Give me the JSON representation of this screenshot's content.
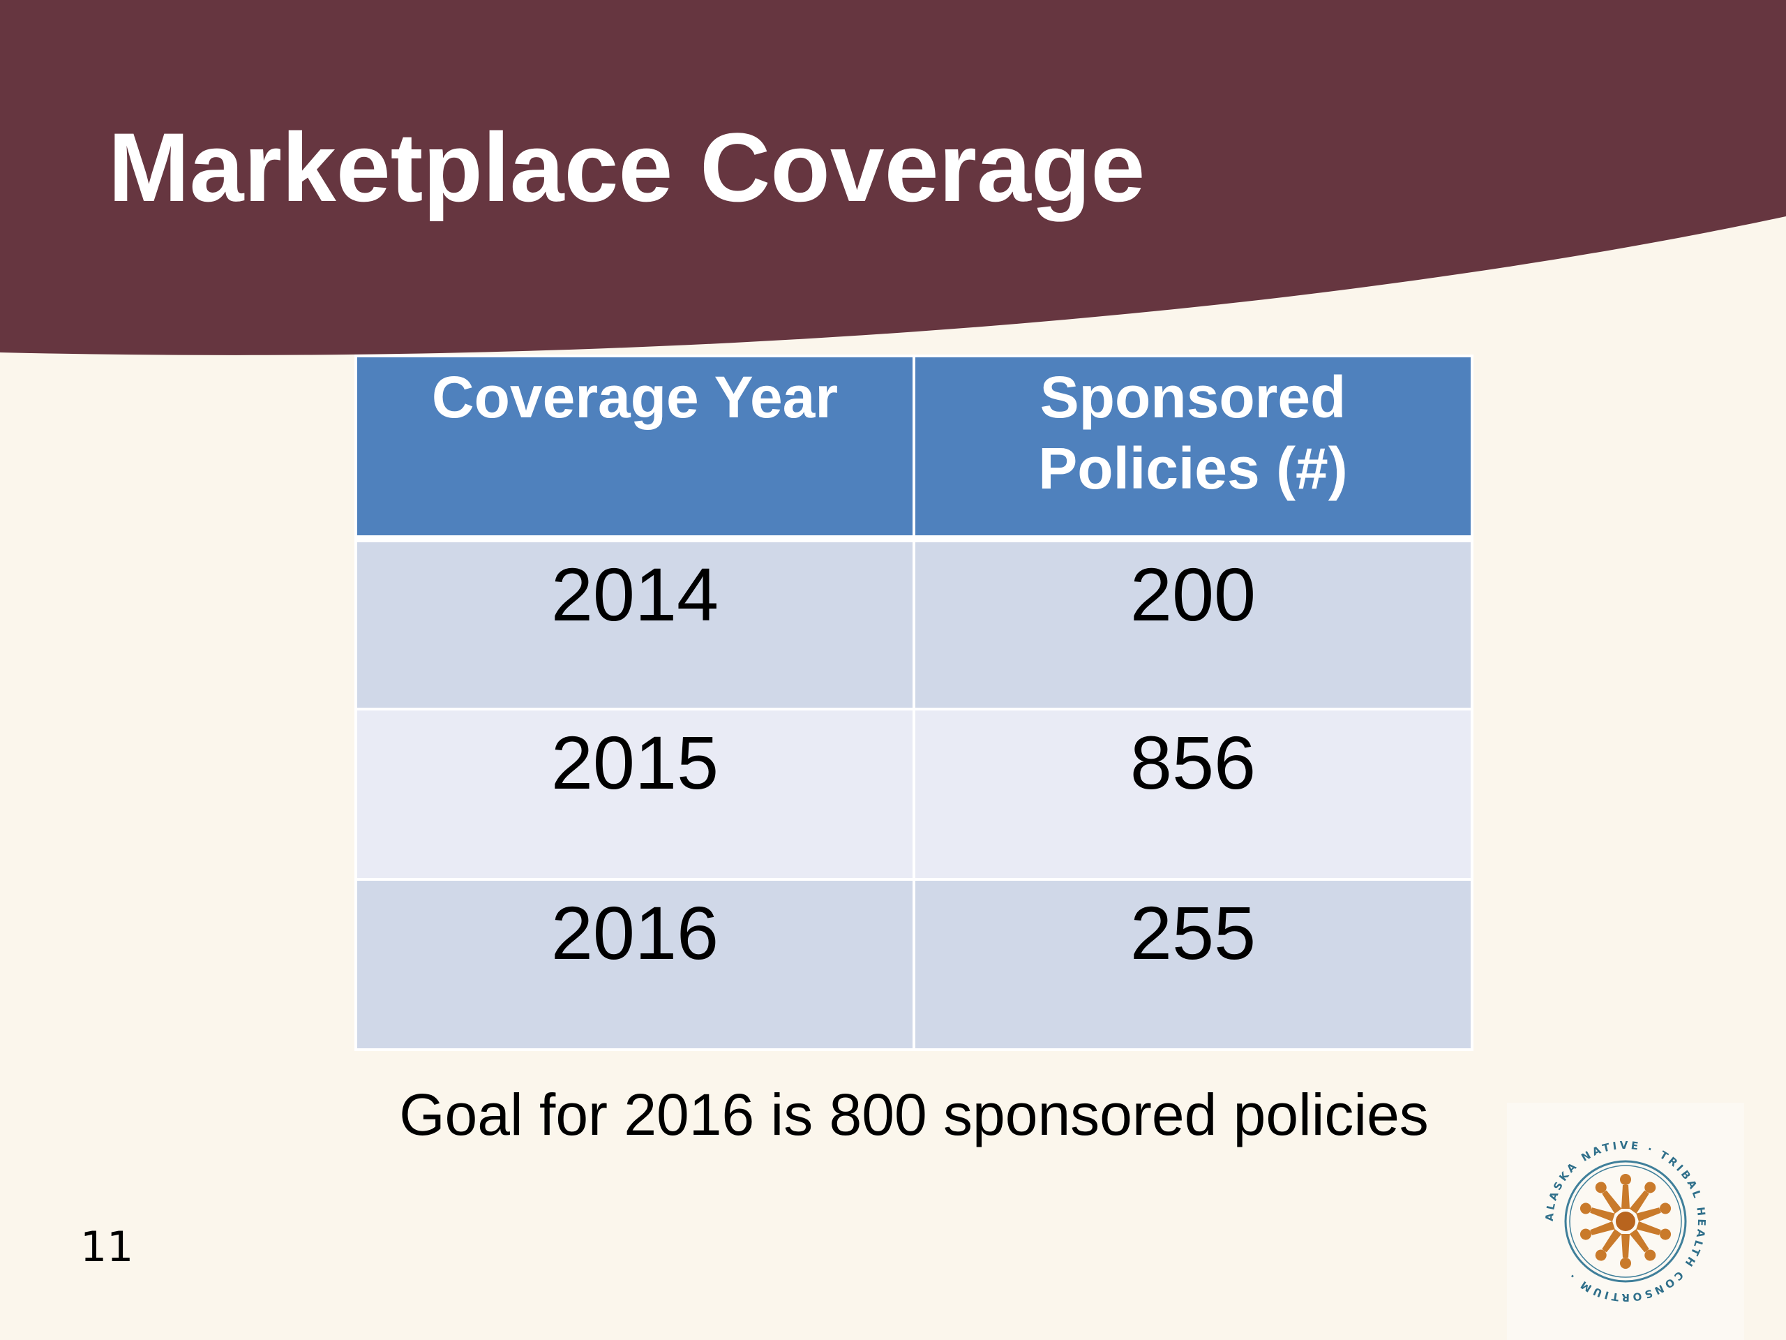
{
  "slide": {
    "title": "Marketplace Coverage",
    "page_number": "11",
    "colors": {
      "header_band": "#663640",
      "background": "#fbf6ec",
      "table_header": "#4f81bd",
      "row_odd": "#d0d8e8",
      "row_even": "#e9ebf5"
    }
  },
  "table": {
    "headers": [
      "Coverage Year",
      "Sponsored Policies (#)"
    ],
    "rows": [
      {
        "year": "2014",
        "policies": "200"
      },
      {
        "year": "2015",
        "policies": "856"
      },
      {
        "year": "2016",
        "policies": "255"
      }
    ]
  },
  "goal": {
    "text": "Goal for 2016 is 800 sponsored policies"
  },
  "logo": {
    "ring_text": "ALASKA NATIVE TRIBAL HEALTH CONSORTIUM",
    "icon": "consortium-seal-icon"
  }
}
